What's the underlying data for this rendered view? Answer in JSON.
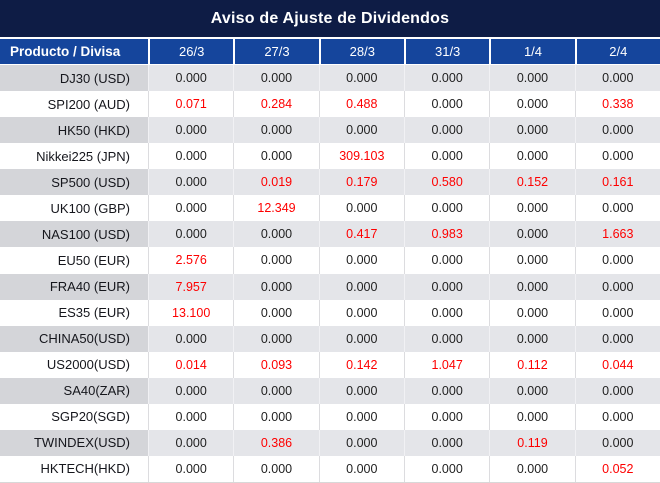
{
  "title": "Aviso de Ajuste de Dividendos",
  "chart_data": {
    "type": "table",
    "title": "Aviso de Ajuste de Dividendos",
    "columns": [
      "Producto / Divisa",
      "26/3",
      "27/3",
      "28/3",
      "31/3",
      "1/4",
      "2/4"
    ],
    "rows": [
      {
        "label": "DJ30 (USD)",
        "values": [
          "0.000",
          "0.000",
          "0.000",
          "0.000",
          "0.000",
          "0.000"
        ]
      },
      {
        "label": "SPI200 (AUD)",
        "values": [
          "0.071",
          "0.284",
          "0.488",
          "0.000",
          "0.000",
          "0.338"
        ]
      },
      {
        "label": "HK50 (HKD)",
        "values": [
          "0.000",
          "0.000",
          "0.000",
          "0.000",
          "0.000",
          "0.000"
        ]
      },
      {
        "label": "Nikkei225 (JPN)",
        "values": [
          "0.000",
          "0.000",
          "309.103",
          "0.000",
          "0.000",
          "0.000"
        ]
      },
      {
        "label": "SP500 (USD)",
        "values": [
          "0.000",
          "0.019",
          "0.179",
          "0.580",
          "0.152",
          "0.161"
        ]
      },
      {
        "label": "UK100 (GBP)",
        "values": [
          "0.000",
          "12.349",
          "0.000",
          "0.000",
          "0.000",
          "0.000"
        ]
      },
      {
        "label": "NAS100 (USD)",
        "values": [
          "0.000",
          "0.000",
          "0.417",
          "0.983",
          "0.000",
          "1.663"
        ]
      },
      {
        "label": "EU50 (EUR)",
        "values": [
          "2.576",
          "0.000",
          "0.000",
          "0.000",
          "0.000",
          "0.000"
        ]
      },
      {
        "label": "FRA40 (EUR)",
        "values": [
          "7.957",
          "0.000",
          "0.000",
          "0.000",
          "0.000",
          "0.000"
        ]
      },
      {
        "label": "ES35 (EUR)",
        "values": [
          "13.100",
          "0.000",
          "0.000",
          "0.000",
          "0.000",
          "0.000"
        ]
      },
      {
        "label": "CHINA50(USD)",
        "values": [
          "0.000",
          "0.000",
          "0.000",
          "0.000",
          "0.000",
          "0.000"
        ]
      },
      {
        "label": "US2000(USD)",
        "values": [
          "0.014",
          "0.093",
          "0.142",
          "1.047",
          "0.112",
          "0.044"
        ]
      },
      {
        "label": "SA40(ZAR)",
        "values": [
          "0.000",
          "0.000",
          "0.000",
          "0.000",
          "0.000",
          "0.000"
        ]
      },
      {
        "label": "SGP20(SGD)",
        "values": [
          "0.000",
          "0.000",
          "0.000",
          "0.000",
          "0.000",
          "0.000"
        ]
      },
      {
        "label": "TWINDEX(USD)",
        "values": [
          "0.000",
          "0.386",
          "0.000",
          "0.000",
          "0.119",
          "0.000"
        ]
      },
      {
        "label": "HKTECH(HKD)",
        "values": [
          "0.000",
          "0.000",
          "0.000",
          "0.000",
          "0.000",
          "0.052"
        ]
      }
    ],
    "value_color_rule": "non-zero values rendered in red, zero values in black",
    "layout": {
      "striping": "alternating rows starting gray",
      "first_column_align": "right",
      "value_align": "center"
    },
    "colors": {
      "title_bar_bg": "#0e1c45",
      "header_row_bg": "#15459c",
      "header_text": "#ffffff",
      "zero_value_text": "#1f1f1f",
      "nonzero_value_text": "#fe0000",
      "striped_row_label_bg": "#d4d5d9",
      "striped_row_value_bg": "#e4e5e9",
      "plain_row_bg": "#ffffff"
    }
  }
}
